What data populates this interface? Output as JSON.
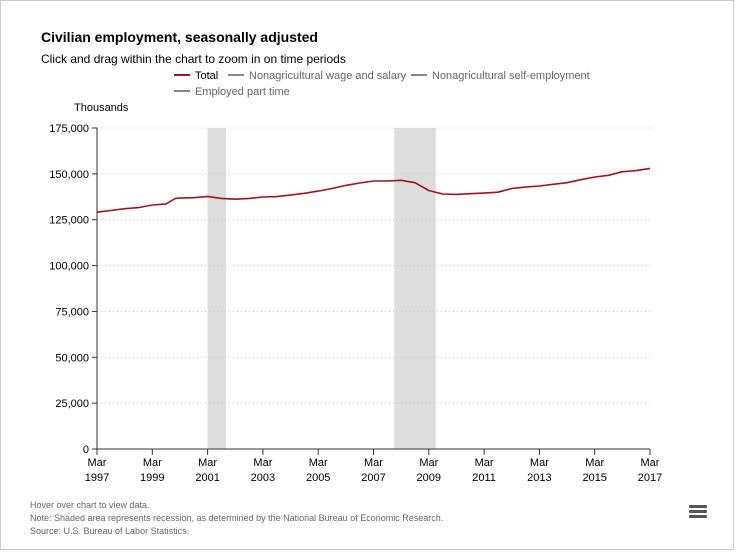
{
  "title": "Civilian employment, seasonally adjusted",
  "subtitle": "Click and drag within the chart to zoom in on time periods",
  "y_axis_title": "Thousands",
  "legend": [
    {
      "label": "Total",
      "color": "#a4111e",
      "active": true
    },
    {
      "label": "Nonagricultural wage and salary",
      "color": "#888888",
      "active": false
    },
    {
      "label": "Nonagricultural self-employment",
      "color": "#888888",
      "active": false
    },
    {
      "label": "Employed part time",
      "color": "#888888",
      "active": false
    }
  ],
  "notes": {
    "hover": "Hover over chart to view data.",
    "note": "Note: Shaded area represents recession, as determined by the National Bureau of Economic Research.",
    "source": "Source: U.S. Bureau of Labor Statistics."
  },
  "menu_icon": "hamburger-menu-icon",
  "chart_data": {
    "type": "line",
    "ylim": [
      0,
      175000
    ],
    "y_ticks": [
      "0",
      "25,000",
      "50,000",
      "75,000",
      "100,000",
      "125,000",
      "150,000",
      "175,000"
    ],
    "x_ticks": [
      {
        "month": "Mar",
        "year": "1997"
      },
      {
        "month": "Mar",
        "year": "1999"
      },
      {
        "month": "Mar",
        "year": "2001"
      },
      {
        "month": "Mar",
        "year": "2003"
      },
      {
        "month": "Mar",
        "year": "2005"
      },
      {
        "month": "Mar",
        "year": "2007"
      },
      {
        "month": "Mar",
        "year": "2009"
      },
      {
        "month": "Mar",
        "year": "2011"
      },
      {
        "month": "Mar",
        "year": "2013"
      },
      {
        "month": "Mar",
        "year": "2015"
      },
      {
        "month": "Mar",
        "year": "2017"
      }
    ],
    "grid": true,
    "recessions": [
      {
        "start": "2001-03",
        "end": "2001-11"
      },
      {
        "start": "2007-12",
        "end": "2009-06"
      }
    ],
    "series": [
      {
        "name": "Total",
        "color": "#a4111e",
        "x": [
          "1997-03",
          "1997-09",
          "1998-03",
          "1998-09",
          "1999-03",
          "1999-09",
          "2000-01",
          "2000-03",
          "2000-09",
          "2001-03",
          "2001-09",
          "2002-03",
          "2002-09",
          "2003-03",
          "2003-09",
          "2004-03",
          "2004-09",
          "2005-03",
          "2005-09",
          "2006-03",
          "2006-09",
          "2007-03",
          "2007-09",
          "2008-03",
          "2008-09",
          "2009-03",
          "2009-09",
          "2010-03",
          "2010-09",
          "2011-03",
          "2011-09",
          "2012-03",
          "2012-09",
          "2013-03",
          "2013-09",
          "2014-03",
          "2014-09",
          "2015-03",
          "2015-09",
          "2016-03",
          "2016-09",
          "2017-03"
        ],
        "values": [
          129100,
          130000,
          131000,
          131600,
          133000,
          133600,
          136600,
          136800,
          137000,
          137700,
          136600,
          136200,
          136600,
          137400,
          137600,
          138400,
          139400,
          140600,
          142000,
          143700,
          145000,
          146100,
          146100,
          146500,
          145200,
          140900,
          139000,
          138800,
          139200,
          139500,
          140000,
          142000,
          142800,
          143400,
          144300,
          145200,
          146800,
          148300,
          149200,
          151200,
          151800,
          153000
        ]
      }
    ]
  }
}
